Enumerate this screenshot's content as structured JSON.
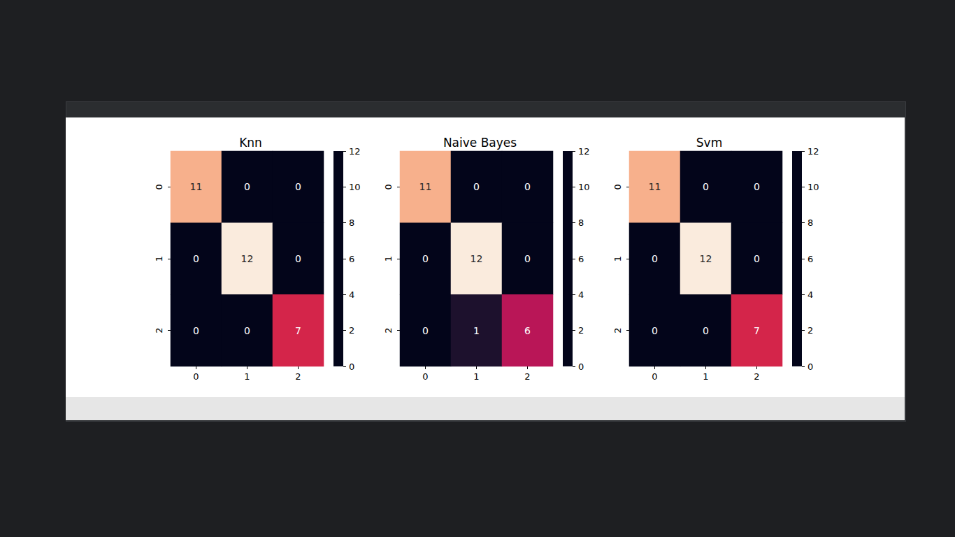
{
  "chart_data": [
    {
      "type": "heatmap",
      "title": "Knn",
      "x": [
        0,
        1,
        2
      ],
      "y": [
        0,
        1,
        2
      ],
      "cells": [
        [
          11,
          0,
          0
        ],
        [
          0,
          12,
          0
        ],
        [
          0,
          0,
          7
        ]
      ],
      "colorbar": {
        "range": [
          0,
          12
        ],
        "ticks": [
          0,
          2,
          4,
          6,
          8,
          10,
          12
        ]
      },
      "data_labels": true
    },
    {
      "type": "heatmap",
      "title": "Naive Bayes",
      "x": [
        0,
        1,
        2
      ],
      "y": [
        0,
        1,
        2
      ],
      "cells": [
        [
          11,
          0,
          0
        ],
        [
          0,
          12,
          0
        ],
        [
          0,
          1,
          6
        ]
      ],
      "colorbar": {
        "range": [
          0,
          12
        ],
        "ticks": [
          0,
          2,
          4,
          6,
          8,
          10,
          12
        ]
      },
      "data_labels": true
    },
    {
      "type": "heatmap",
      "title": "Svm",
      "x": [
        0,
        1,
        2
      ],
      "y": [
        0,
        1,
        2
      ],
      "cells": [
        [
          11,
          0,
          0
        ],
        [
          0,
          12,
          0
        ],
        [
          0,
          0,
          7
        ]
      ],
      "colorbar": {
        "range": [
          0,
          12
        ],
        "ticks": [
          0,
          2,
          4,
          6,
          8,
          10,
          12
        ]
      },
      "data_labels": true
    }
  ]
}
